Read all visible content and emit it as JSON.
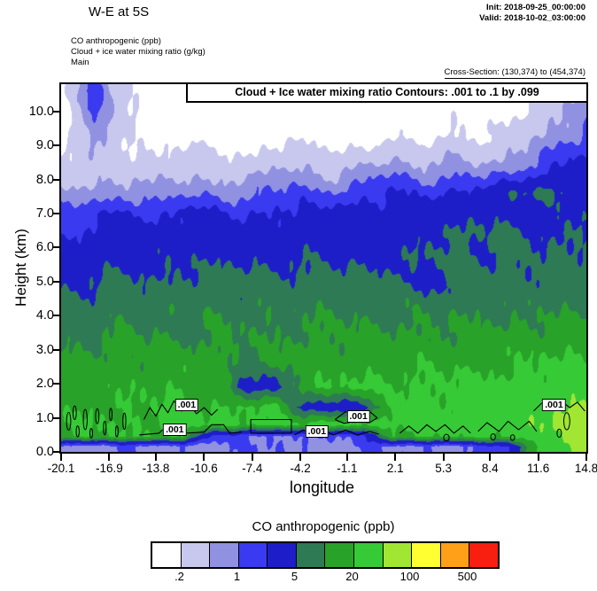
{
  "header": {
    "title": "W-E at 5S",
    "init_line": "Init: 2018-09-25_00:00:00",
    "valid_line": "Valid: 2018-10-02_03:00:00",
    "field_lines": [
      "CO anthropogenic  (ppb)",
      "Cloud + ice water mixing ratio  (g/kg)",
      "Main"
    ],
    "cross_section": "Cross-Section: (130,374) to (454,374)"
  },
  "plot": {
    "contour_info": "Cloud + Ice water mixing ratio Contours: .001 to .1 by .099",
    "ylabel": "Height (km)",
    "xlabel": "longitude"
  },
  "chart_data": {
    "type": "heatmap",
    "title": "W-E at 5S",
    "xlabel": "longitude",
    "ylabel": "Height (km)",
    "x_range": [
      -20.1,
      14.8
    ],
    "y_range": [
      0,
      10.8
    ],
    "x_ticks": [
      -20.1,
      -16.9,
      -13.8,
      -10.6,
      -7.4,
      -4.2,
      -1.1,
      2.1,
      5.3,
      8.4,
      11.6,
      14.8
    ],
    "y_ticks": [
      "0.0",
      "1.0",
      "2.0",
      "3.0",
      "4.0",
      "5.0",
      "6.0",
      "7.0",
      "8.0",
      "9.0",
      "10.0"
    ],
    "co_field": {
      "name": "CO anthropogenic",
      "units": "ppb",
      "x": [
        -20.1,
        -18,
        -16,
        -14,
        -12,
        -10,
        -8,
        -6,
        -4,
        -2,
        0,
        2,
        4,
        6,
        8,
        10,
        12,
        14.8
      ],
      "y": [
        0.15,
        0.45,
        0.8,
        1.3,
        1.9,
        2.6,
        3.4,
        4.2,
        5.0,
        5.8,
        6.4,
        7.0,
        7.6,
        8.3,
        9.3,
        10.6
      ],
      "values": [
        [
          0.9,
          0.7,
          1.1,
          0.7,
          0.9,
          0.7,
          1.2,
          0.8,
          1.1,
          0.7,
          1.2,
          0.8,
          1.0,
          0.8,
          1.2,
          2.5,
          40,
          70
        ],
        [
          18,
          20,
          17,
          21,
          19,
          1.4,
          1.1,
          0.9,
          1.2,
          0.9,
          1.4,
          20,
          21,
          20,
          22,
          24,
          45,
          70
        ],
        [
          18,
          22,
          19,
          23,
          25,
          21,
          24,
          26,
          23,
          27,
          25,
          28,
          26,
          29,
          31,
          33,
          50,
          80
        ],
        [
          16,
          18,
          20,
          19,
          22,
          21,
          23,
          24,
          3.5,
          3,
          3.5,
          26,
          24,
          26,
          27,
          28,
          40,
          60
        ],
        [
          14,
          16,
          16,
          18,
          20,
          18,
          3.5,
          3,
          18,
          20,
          22,
          22,
          24,
          24,
          25,
          26,
          30,
          36
        ],
        [
          11,
          13,
          14,
          13,
          15,
          14,
          10,
          11,
          14,
          15,
          16,
          16,
          17,
          16,
          18,
          18,
          22,
          24
        ],
        [
          8,
          9,
          11,
          10,
          9,
          11,
          10,
          9,
          11,
          12,
          11,
          12,
          12,
          11,
          12,
          13,
          14,
          16
        ],
        [
          6,
          7,
          8,
          7,
          8,
          9,
          8,
          9,
          8,
          9,
          8,
          9,
          8,
          9,
          9,
          8,
          9,
          8
        ],
        [
          4,
          5,
          6,
          5,
          6,
          7,
          6,
          7,
          6,
          7,
          6,
          7,
          3.5,
          6,
          7,
          6,
          7,
          6
        ],
        [
          2.8,
          3.6,
          3,
          3.6,
          4.4,
          3.6,
          4.4,
          3.6,
          4.4,
          3.6,
          4.4,
          3.6,
          5,
          6,
          5,
          6,
          5,
          6
        ],
        [
          1.8,
          2.6,
          3.2,
          2.8,
          3.2,
          2.8,
          3.2,
          2.8,
          3.2,
          2.8,
          3.2,
          2.8,
          4.4,
          6,
          5,
          6,
          4.4,
          6.4
        ],
        [
          1.2,
          1.6,
          2.4,
          1.6,
          2.8,
          2.2,
          1.6,
          2.6,
          2.2,
          2.8,
          3.2,
          2.8,
          3.4,
          2.8,
          4.6,
          3.4,
          2.8,
          4.6
        ],
        [
          0.6,
          0.7,
          0.8,
          0.7,
          0.8,
          0.9,
          0.8,
          1.1,
          1.3,
          1.1,
          1.6,
          2.2,
          1.6,
          2.4,
          3,
          4.6,
          6.4,
          3.4
        ],
        [
          0.24,
          0.32,
          0.26,
          0.32,
          0.44,
          0.32,
          0.26,
          0.6,
          0.52,
          0.32,
          0.6,
          0.84,
          0.6,
          0.72,
          0.6,
          0.84,
          1.8,
          3.2
        ],
        [
          0.12,
          0.7,
          0.28,
          0.12,
          0.12,
          0.16,
          0.12,
          0.12,
          0.16,
          0.12,
          0.12,
          0.16,
          0.12,
          0.24,
          0.16,
          0.3,
          0.5,
          1.2
        ],
        [
          0.12,
          1.6,
          0.3,
          0.12,
          0.1,
          0.1,
          0.1,
          0.1,
          0.1,
          0.1,
          0.1,
          0.1,
          0.1,
          0.1,
          0.1,
          0.1,
          0.24,
          0.6
        ]
      ]
    },
    "cloud_contours": {
      "name": "Cloud + Ice water mixing ratio",
      "units": "g/kg",
      "levels": [
        0.001,
        0.1
      ],
      "label_text": ".001",
      "paths": [
        [
          [
            -14.6,
            0.95
          ],
          [
            -14.2,
            1.3
          ],
          [
            -13.8,
            1.05
          ],
          [
            -13.4,
            1.4
          ],
          [
            -13.0,
            1.15
          ],
          [
            -12.6,
            1.5
          ],
          [
            -12.1,
            1.2
          ],
          [
            -11.6,
            1.42
          ],
          [
            -11.1,
            1.12
          ],
          [
            -10.6,
            1.3
          ],
          [
            -10.1,
            1.08
          ],
          [
            -9.7,
            1.25
          ]
        ],
        [
          [
            -14.9,
            0.5
          ],
          [
            -13.6,
            0.55
          ],
          [
            -13.1,
            0.75
          ],
          [
            -12.3,
            0.76
          ],
          [
            -11.9,
            0.55
          ],
          [
            -10.6,
            0.58
          ],
          [
            -10.1,
            0.8
          ],
          [
            -9.3,
            0.8
          ],
          [
            -8.9,
            0.55
          ],
          [
            -8.1,
            0.58
          ]
        ],
        [
          [
            -7.5,
            0.55
          ],
          [
            -7.5,
            0.95
          ],
          [
            -4.8,
            0.95
          ],
          [
            -4.8,
            0.55
          ],
          [
            -7.5,
            0.55
          ]
        ],
        [
          [
            -4.6,
            0.5
          ],
          [
            -4.0,
            0.64
          ],
          [
            -3.4,
            0.5
          ],
          [
            -2.6,
            0.62
          ],
          [
            -2.0,
            0.5
          ],
          [
            -1.2,
            0.64
          ],
          [
            -0.4,
            0.5
          ],
          [
            0.4,
            0.6
          ],
          [
            1.0,
            0.52
          ]
        ],
        [
          [
            -1.9,
            0.95
          ],
          [
            -1.2,
            1.18
          ],
          [
            -0.4,
            1.05
          ],
          [
            0.3,
            1.22
          ],
          [
            0.9,
            1.0
          ],
          [
            0.4,
            0.86
          ],
          [
            -0.5,
            0.9
          ],
          [
            -1.3,
            0.84
          ],
          [
            -1.9,
            0.95
          ]
        ],
        [
          [
            2.4,
            0.55
          ],
          [
            3.0,
            0.76
          ],
          [
            3.6,
            0.55
          ],
          [
            4.2,
            0.8
          ],
          [
            4.8,
            0.6
          ],
          [
            5.4,
            0.8
          ],
          [
            6.0,
            0.55
          ],
          [
            6.6,
            0.76
          ],
          [
            7.1,
            0.55
          ]
        ],
        [
          [
            7.6,
            0.6
          ],
          [
            8.2,
            0.86
          ],
          [
            9.0,
            0.6
          ],
          [
            9.6,
            0.9
          ],
          [
            10.3,
            0.65
          ],
          [
            11.0,
            0.9
          ],
          [
            11.5,
            0.6
          ]
        ],
        [
          [
            11.3,
            1.2
          ],
          [
            11.9,
            1.46
          ],
          [
            12.5,
            1.25
          ],
          [
            13.1,
            1.5
          ],
          [
            13.7,
            1.3
          ],
          [
            14.2,
            1.46
          ],
          [
            14.7,
            1.2
          ]
        ]
      ],
      "blobs": [
        [
          -19.6,
          0.9,
          0.14,
          0.26
        ],
        [
          -19.2,
          1.15,
          0.11,
          0.2
        ],
        [
          -19.0,
          0.6,
          0.1,
          0.16
        ],
        [
          -18.5,
          0.95,
          0.13,
          0.3
        ],
        [
          -18.1,
          0.55,
          0.09,
          0.14
        ],
        [
          -17.7,
          1.05,
          0.11,
          0.22
        ],
        [
          -17.2,
          0.7,
          0.09,
          0.2
        ],
        [
          -16.8,
          1.1,
          0.08,
          0.18
        ],
        [
          -16.4,
          0.6,
          0.09,
          0.16
        ],
        [
          -15.9,
          0.9,
          0.1,
          0.24
        ],
        [
          5.5,
          0.42,
          0.18,
          0.1
        ],
        [
          8.6,
          0.44,
          0.16,
          0.09
        ],
        [
          9.9,
          0.42,
          0.14,
          0.08
        ],
        [
          13.5,
          0.9,
          0.2,
          0.25
        ],
        [
          13.0,
          0.55,
          0.15,
          0.12
        ]
      ],
      "labels": [
        {
          "lon": -11.75,
          "km": 1.38,
          "text": ".001"
        },
        {
          "lon": -12.55,
          "km": 0.65,
          "text": ".001"
        },
        {
          "lon": -3.1,
          "km": 0.6,
          "text": ".001"
        },
        {
          "lon": -0.35,
          "km": 1.05,
          "text": ".001"
        },
        {
          "lon": 12.65,
          "km": 1.38,
          "text": ".001"
        }
      ]
    },
    "colorbar": {
      "title": "CO anthropogenic  (ppb)",
      "thresholds": [
        0.2,
        0.5,
        1,
        2,
        5,
        10,
        20,
        50,
        100,
        200,
        500
      ],
      "colors": [
        "#ffffff",
        "#c8c8ee",
        "#9191e2",
        "#3a3af0",
        "#1e1ec8",
        "#2d7a55",
        "#28a228",
        "#36ca36",
        "#a0e632",
        "#ffff32",
        "#ffa018",
        "#f81e10"
      ],
      "tick_labels": [
        ".2",
        "1",
        "5",
        "20",
        "100",
        "500"
      ],
      "tick_boundaries": [
        1,
        3,
        5,
        7,
        9,
        11
      ]
    }
  }
}
